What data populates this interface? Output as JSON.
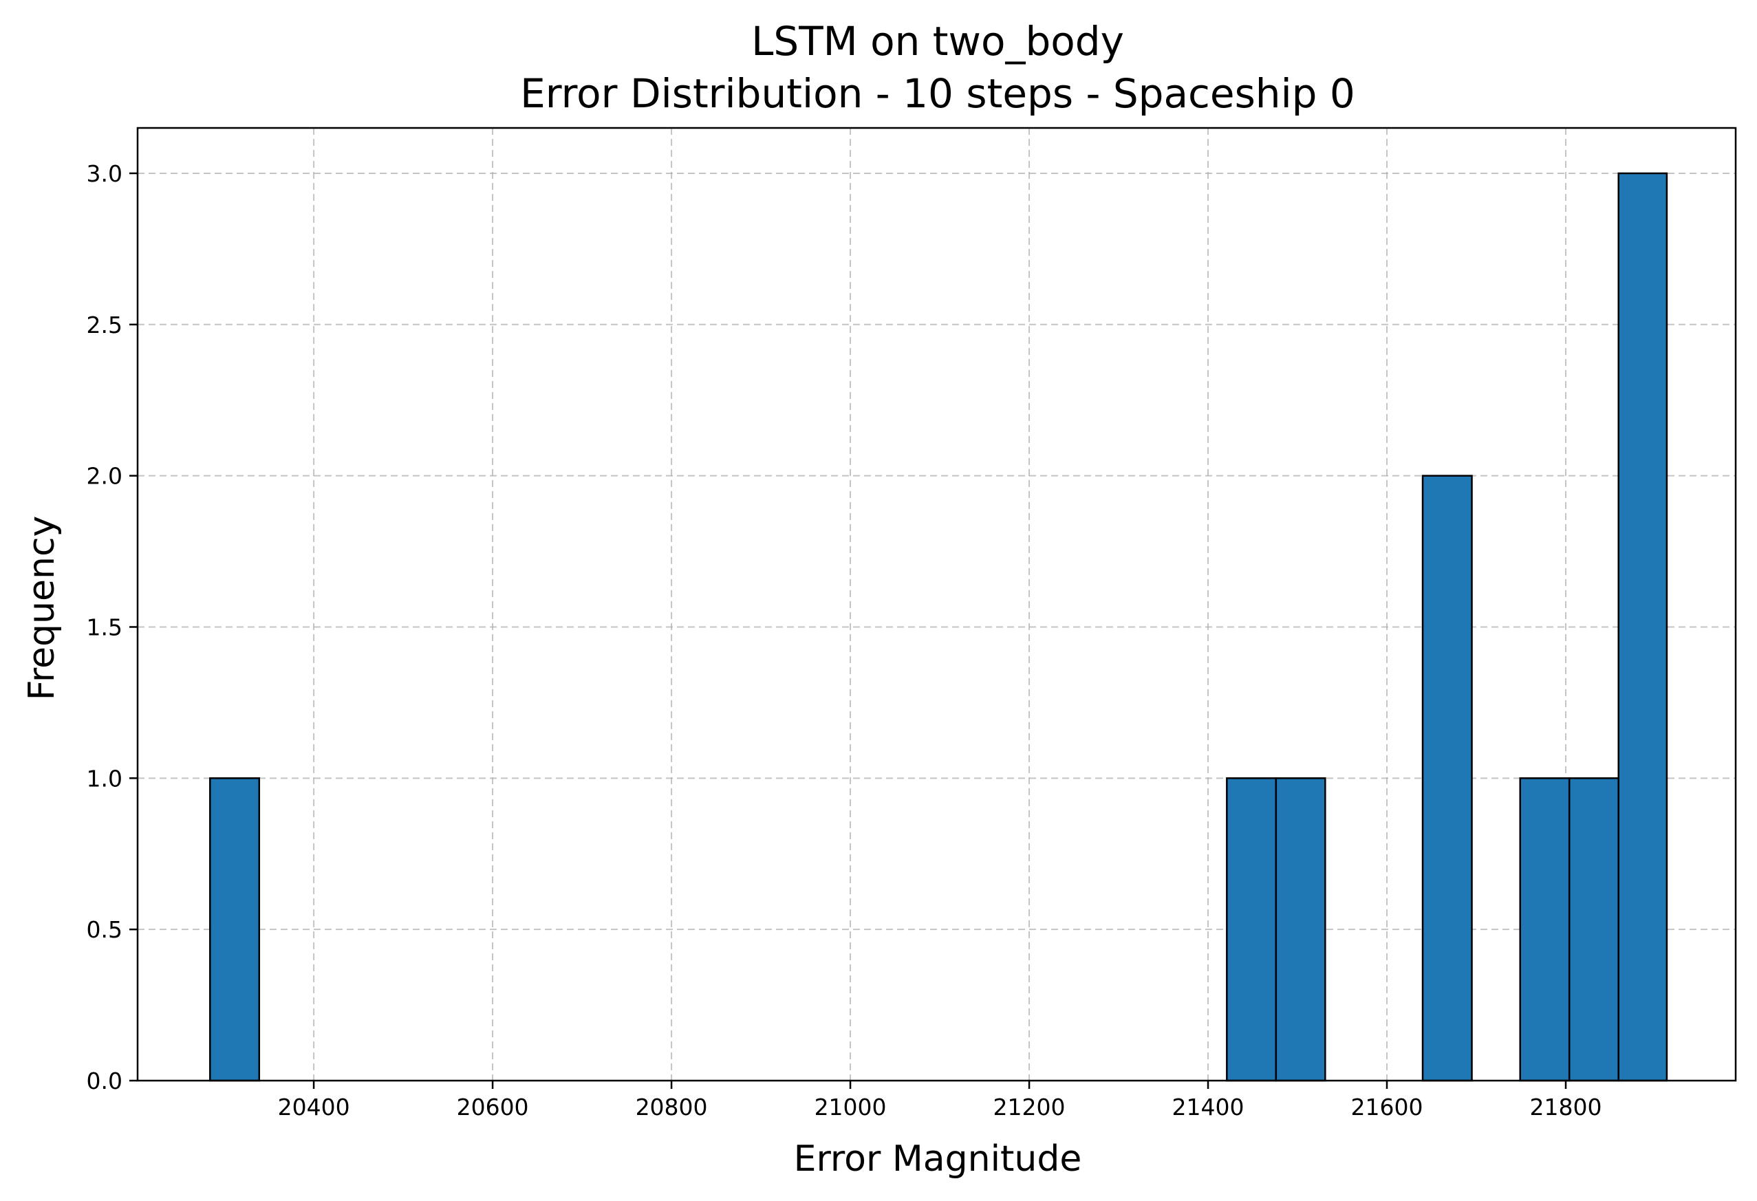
{
  "chart_data": {
    "type": "bar",
    "title": "LSTM on two_body",
    "subtitle": "Error Distribution - 10 steps - Spaceship 0",
    "xlabel": "Error Magnitude",
    "ylabel": "Frequency",
    "xlim": [
      20203,
      21990
    ],
    "ylim": [
      0,
      3.15
    ],
    "grid": true,
    "bar_color": "#1f77b4",
    "edge_color": "#000000",
    "bin_width": 54.6,
    "bins": [
      {
        "x0": 20284,
        "x1": 20339,
        "count": 1
      },
      {
        "x0": 21421,
        "x1": 21476,
        "count": 1
      },
      {
        "x0": 21476,
        "x1": 21531,
        "count": 1
      },
      {
        "x0": 21640,
        "x1": 21695,
        "count": 2
      },
      {
        "x0": 21749,
        "x1": 21804,
        "count": 1
      },
      {
        "x0": 21804,
        "x1": 21859,
        "count": 1
      },
      {
        "x0": 21859,
        "x1": 21913,
        "count": 3
      }
    ],
    "xticks": [
      20400,
      20600,
      20800,
      21000,
      21200,
      21400,
      21600,
      21800
    ],
    "xtick_labels": [
      "20400",
      "20600",
      "20800",
      "21000",
      "21200",
      "21400",
      "21600",
      "21800"
    ],
    "yticks": [
      0,
      0.5,
      1.0,
      1.5,
      2.0,
      2.5,
      3.0
    ],
    "ytick_labels": [
      "0.0",
      "0.5",
      "1.0",
      "1.5",
      "2.0",
      "2.5",
      "3.0"
    ]
  }
}
